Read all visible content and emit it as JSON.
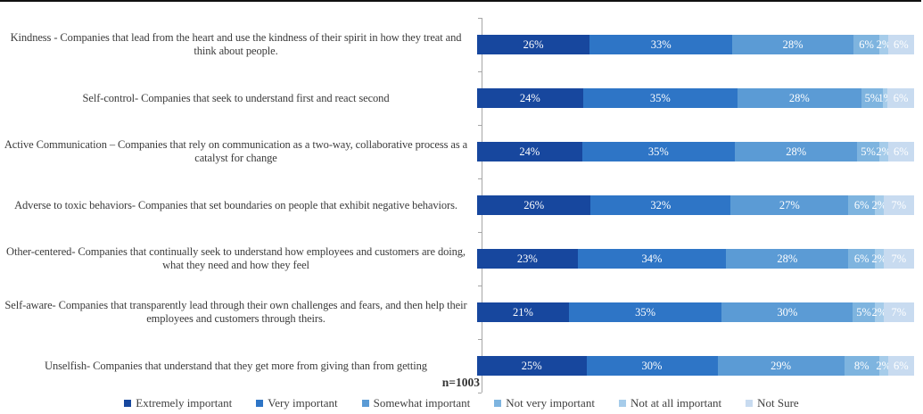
{
  "chart_data": {
    "type": "bar",
    "orientation": "horizontal-stacked",
    "title": "",
    "note": "n=1003",
    "value_suffix": "%",
    "xlim": [
      0,
      100
    ],
    "grid": false,
    "legend_position": "bottom",
    "axis_color": "#a6a6a6",
    "categories": [
      "Kindness - Companies that lead from the heart and use the kindness of their spirit in how they treat and think about people.",
      "Self-control- Companies that seek to understand first and react second",
      "Active Communication – Companies that rely on communication as a two-way, collaborative process as a catalyst for change",
      "Adverse to toxic behaviors- Companies that set boundaries on people that exhibit negative behaviors.",
      "Other-centered- Companies that continually seek to understand how employees and customers are doing, what they need and how they feel",
      "Self-aware- Companies that transparently lead through their own challenges and fears, and then help their employees and customers through theirs.",
      "Unselfish- Companies that understand that they get more from giving than from getting"
    ],
    "series": [
      {
        "name": "Extremely important",
        "color": "#17479E",
        "values": [
          26,
          24,
          24,
          26,
          23,
          21,
          25
        ]
      },
      {
        "name": "Very important",
        "color": "#2E75C6",
        "values": [
          33,
          35,
          35,
          32,
          34,
          35,
          30
        ]
      },
      {
        "name": "Somewhat important",
        "color": "#5B9BD5",
        "values": [
          28,
          28,
          28,
          27,
          28,
          30,
          29
        ]
      },
      {
        "name": "Not very important",
        "color": "#7EB4DF",
        "values": [
          6,
          5,
          5,
          6,
          6,
          5,
          8
        ]
      },
      {
        "name": "Not at all important",
        "color": "#A6CCEA",
        "values": [
          2,
          1,
          2,
          2,
          2,
          2,
          2
        ]
      },
      {
        "name": "Not Sure",
        "color": "#C8DBF0",
        "values": [
          6,
          6,
          6,
          7,
          7,
          7,
          6
        ]
      }
    ]
  }
}
